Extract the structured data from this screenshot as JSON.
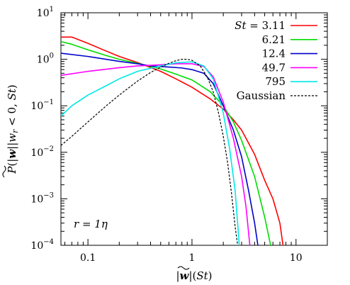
{
  "chart_data": {
    "type": "line",
    "xscale": "log",
    "yscale": "log",
    "xlim": [
      0.055,
      20
    ],
    "ylim": [
      0.0001,
      10
    ],
    "xticks": [
      {
        "value": 0.1,
        "label": "0.1"
      },
      {
        "value": 1,
        "label": "1"
      },
      {
        "value": 10,
        "label": "10"
      }
    ],
    "yticks": [
      {
        "value": 10,
        "base": "10",
        "exp": "1"
      },
      {
        "value": 1,
        "base": "10",
        "exp": "0"
      },
      {
        "value": 0.1,
        "base": "10",
        "exp": "−1"
      },
      {
        "value": 0.01,
        "base": "10",
        "exp": "−2"
      },
      {
        "value": 0.001,
        "base": "10",
        "exp": "−3"
      },
      {
        "value": 0.0001,
        "base": "10",
        "exp": "−4"
      }
    ],
    "xlabel": "|w̃|(St)",
    "ylabel": "P(|w̃||w_r < 0, St)",
    "annotation": "r = 1η",
    "legend_position": "top-right",
    "grid": false,
    "series": [
      {
        "name": "St = 3.11",
        "color": "#ff0000",
        "dash": "solid",
        "points": [
          [
            0.055,
            3.0
          ],
          [
            0.07,
            3.0
          ],
          [
            0.1,
            2.2
          ],
          [
            0.15,
            1.5
          ],
          [
            0.2,
            1.15
          ],
          [
            0.3,
            0.85
          ],
          [
            0.5,
            0.55
          ],
          [
            0.7,
            0.38
          ],
          [
            1.0,
            0.25
          ],
          [
            1.5,
            0.14
          ],
          [
            2.0,
            0.085
          ],
          [
            2.5,
            0.05
          ],
          [
            3.0,
            0.03
          ],
          [
            4.0,
            0.009
          ],
          [
            5.0,
            0.0025
          ],
          [
            6.0,
            0.001
          ],
          [
            7.0,
            0.0003
          ],
          [
            7.5,
            0.0001
          ]
        ]
      },
      {
        "name": "6.21",
        "color": "#00dd00",
        "dash": "solid",
        "points": [
          [
            0.055,
            2.4
          ],
          [
            0.07,
            2.1
          ],
          [
            0.1,
            1.6
          ],
          [
            0.15,
            1.2
          ],
          [
            0.2,
            1.0
          ],
          [
            0.3,
            0.82
          ],
          [
            0.5,
            0.62
          ],
          [
            0.7,
            0.48
          ],
          [
            1.0,
            0.36
          ],
          [
            1.5,
            0.2
          ],
          [
            2.0,
            0.1
          ],
          [
            2.5,
            0.045
          ],
          [
            3.0,
            0.018
          ],
          [
            4.0,
            0.003
          ],
          [
            5.0,
            0.0004
          ],
          [
            5.7,
            0.0001
          ]
        ]
      },
      {
        "name": "12.4",
        "color": "#0000cc",
        "dash": "solid",
        "points": [
          [
            0.055,
            1.35
          ],
          [
            0.1,
            1.15
          ],
          [
            0.2,
            0.9
          ],
          [
            0.3,
            0.8
          ],
          [
            0.4,
            0.72
          ],
          [
            0.6,
            0.68
          ],
          [
            0.8,
            0.65
          ],
          [
            1.0,
            0.6
          ],
          [
            1.3,
            0.5
          ],
          [
            1.6,
            0.3
          ],
          [
            2.0,
            0.1
          ],
          [
            2.5,
            0.03
          ],
          [
            3.0,
            0.008
          ],
          [
            3.5,
            0.0015
          ],
          [
            4.0,
            0.0003
          ],
          [
            4.3,
            0.0001
          ]
        ]
      },
      {
        "name": "49.7",
        "color": "#ff00ff",
        "dash": "solid",
        "points": [
          [
            0.055,
            0.45
          ],
          [
            0.1,
            0.55
          ],
          [
            0.2,
            0.66
          ],
          [
            0.3,
            0.72
          ],
          [
            0.5,
            0.76
          ],
          [
            0.7,
            0.8
          ],
          [
            1.0,
            0.8
          ],
          [
            1.3,
            0.7
          ],
          [
            1.6,
            0.42
          ],
          [
            2.0,
            0.12
          ],
          [
            2.5,
            0.02
          ],
          [
            3.0,
            0.003
          ],
          [
            3.3,
            0.0007
          ],
          [
            3.6,
            0.0001
          ]
        ]
      },
      {
        "name": "795",
        "color": "#00e8e8",
        "dash": "solid",
        "points": [
          [
            0.055,
            0.06
          ],
          [
            0.07,
            0.1
          ],
          [
            0.1,
            0.17
          ],
          [
            0.15,
            0.27
          ],
          [
            0.2,
            0.38
          ],
          [
            0.3,
            0.55
          ],
          [
            0.5,
            0.72
          ],
          [
            0.7,
            0.84
          ],
          [
            1.0,
            0.88
          ],
          [
            1.3,
            0.72
          ],
          [
            1.6,
            0.38
          ],
          [
            2.0,
            0.07
          ],
          [
            2.3,
            0.012
          ],
          [
            2.6,
            0.0015
          ],
          [
            2.85,
            0.0001
          ]
        ]
      },
      {
        "name": "Gaussian",
        "color": "#000000",
        "dash": "dashed",
        "points": [
          [
            0.055,
            0.014
          ],
          [
            0.07,
            0.022
          ],
          [
            0.1,
            0.045
          ],
          [
            0.15,
            0.1
          ],
          [
            0.2,
            0.17
          ],
          [
            0.3,
            0.34
          ],
          [
            0.4,
            0.52
          ],
          [
            0.5,
            0.68
          ],
          [
            0.6,
            0.82
          ],
          [
            0.7,
            0.93
          ],
          [
            0.8,
            1.0
          ],
          [
            0.9,
            1.0
          ],
          [
            1.0,
            0.95
          ],
          [
            1.2,
            0.72
          ],
          [
            1.4,
            0.42
          ],
          [
            1.6,
            0.2
          ],
          [
            1.8,
            0.07
          ],
          [
            2.0,
            0.022
          ],
          [
            2.2,
            0.006
          ],
          [
            2.4,
            0.0013
          ],
          [
            2.6,
            0.00025
          ],
          [
            2.75,
            0.0001
          ]
        ]
      }
    ]
  }
}
